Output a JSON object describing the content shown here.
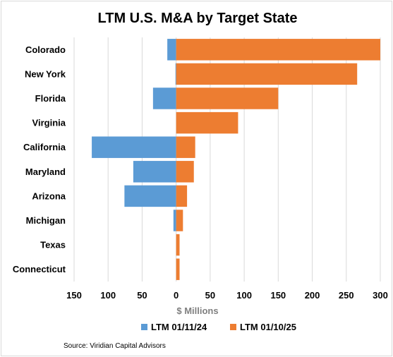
{
  "chart_data": {
    "type": "bar",
    "orientation": "horizontal",
    "title": "LTM U.S. M&A by Target State",
    "xlabel": "$ Millions",
    "ylabel": "",
    "categories": [
      "Colorado",
      "New York",
      "Florida",
      "Virginia",
      "California",
      "Maryland",
      "Arizona",
      "Michigan",
      "Texas",
      "Connecticut"
    ],
    "series": [
      {
        "name": "LTM 01/11/24",
        "color": "#5b9bd5",
        "direction": "left",
        "values": [
          13,
          1,
          34,
          0,
          124,
          63,
          76,
          4,
          0,
          0
        ]
      },
      {
        "name": "LTM 01/10/25",
        "color": "#ed7d31",
        "direction": "right",
        "values": [
          300,
          266,
          150,
          91,
          28,
          26,
          16,
          10,
          5,
          5
        ]
      }
    ],
    "xlim": [
      -150,
      300
    ],
    "x_ticks": [
      -150,
      -100,
      -50,
      0,
      50,
      100,
      150,
      200,
      250,
      300
    ],
    "x_tick_labels": [
      "150",
      "100",
      "50",
      "0",
      "50",
      "100",
      "150",
      "200",
      "250",
      "300"
    ],
    "grid": true,
    "legend_position": "bottom"
  },
  "source_text": "Source: Viridian Capital Advisors"
}
